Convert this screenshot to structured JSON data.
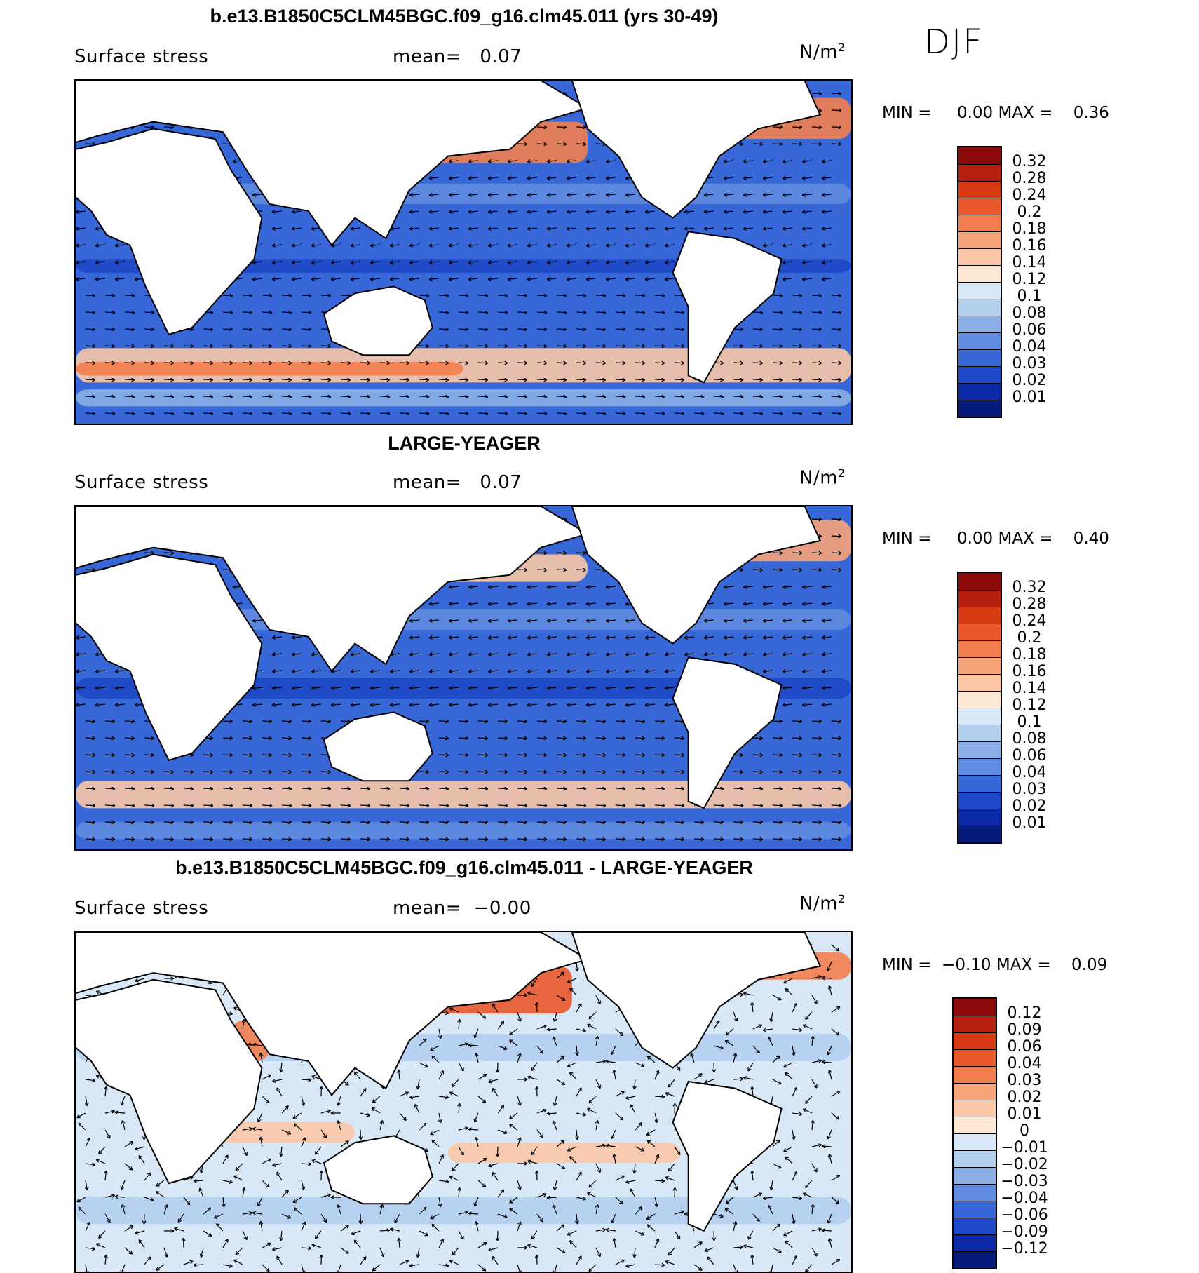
{
  "season": "DJF",
  "units_base": "N/m",
  "units_exp": "2",
  "panels": [
    {
      "title": "b.e13.B1850C5CLM45BGC.f09_g16.clm45.011 (yrs 30-49)",
      "variable": "Surface stress",
      "mean_label": "mean=",
      "mean_value": "0.07",
      "min_label": "MIN =",
      "min_value": "0.00",
      "max_label": "MAX =",
      "max_value": "0.36",
      "levels": [
        "0.32",
        "0.28",
        "0.24",
        "0.2",
        "0.18",
        "0.16",
        "0.14",
        "0.12",
        "0.1",
        "0.08",
        "0.06",
        "0.04",
        "0.03",
        "0.02",
        "0.01"
      ],
      "colors": [
        "#8c0a0a",
        "#b51f0d",
        "#d63a12",
        "#e8582a",
        "#f27e4f",
        "#f8a47a",
        "#fbc6a6",
        "#fde6d2",
        "#d9e8f7",
        "#b3cfee",
        "#8aaee6",
        "#5f8be0",
        "#3867d8",
        "#1d47c7",
        "#0c2aa6",
        "#061a7a"
      ]
    },
    {
      "title": "LARGE-YEAGER",
      "variable": "Surface stress",
      "mean_label": "mean=",
      "mean_value": "0.07",
      "min_label": "MIN =",
      "min_value": "0.00",
      "max_label": "MAX =",
      "max_value": "0.40",
      "levels": [
        "0.32",
        "0.28",
        "0.24",
        "0.2",
        "0.18",
        "0.16",
        "0.14",
        "0.12",
        "0.1",
        "0.08",
        "0.06",
        "0.04",
        "0.03",
        "0.02",
        "0.01"
      ],
      "colors": [
        "#8c0a0a",
        "#b51f0d",
        "#d63a12",
        "#e8582a",
        "#f27e4f",
        "#f8a47a",
        "#fbc6a6",
        "#fde6d2",
        "#d9e8f7",
        "#b3cfee",
        "#8aaee6",
        "#5f8be0",
        "#3867d8",
        "#1d47c7",
        "#0c2aa6",
        "#061a7a"
      ]
    },
    {
      "title": "b.e13.B1850C5CLM45BGC.f09_g16.clm45.011 - LARGE-YEAGER",
      "variable": "Surface stress",
      "mean_label": "mean=",
      "mean_value": "−0.00",
      "min_label": "MIN =",
      "min_value": "−0.10",
      "max_label": "MAX =",
      "max_value": "0.09",
      "levels": [
        "0.12",
        "0.09",
        "0.06",
        "0.04",
        "0.03",
        "0.02",
        "0.01",
        "0",
        "−0.01",
        "−0.02",
        "−0.03",
        "−0.04",
        "−0.06",
        "−0.09",
        "−0.12"
      ],
      "colors": [
        "#8c0a0a",
        "#b51f0d",
        "#d63a12",
        "#e8582a",
        "#f27e4f",
        "#f8a47a",
        "#fbc6a6",
        "#fde6d2",
        "#d9e8f7",
        "#b3cfee",
        "#8aaee6",
        "#5f8be0",
        "#3867d8",
        "#1d47c7",
        "#0c2aa6",
        "#061a7a"
      ]
    }
  ]
}
